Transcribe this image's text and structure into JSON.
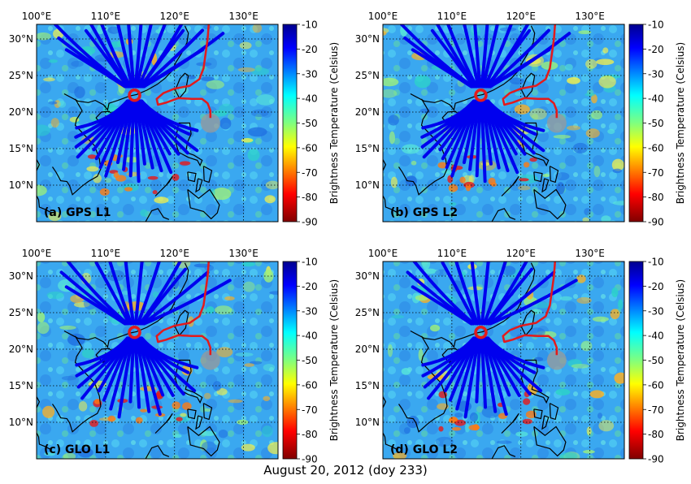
{
  "figure": {
    "date_caption": "August 20, 2012 (doy 233)",
    "colorbar": {
      "label": "Brightness Temperature (Celsius)",
      "ticks": [
        "-10",
        "-20",
        "-30",
        "-40",
        "-50",
        "-60",
        "-70",
        "-80",
        "-90"
      ],
      "range": [
        -90,
        -10
      ]
    },
    "lon_ticks": [
      "100°E",
      "110°E",
      "120°E",
      "130°E"
    ],
    "lat_ticks": [
      "30°N",
      "25°N",
      "20°N",
      "15°N",
      "10°N"
    ],
    "map_extent": {
      "lon": [
        100,
        135
      ],
      "lat": [
        5,
        32
      ]
    },
    "station": {
      "lon": 114.2,
      "lat": 22.3
    },
    "colors": {
      "tracks": "#0000ee",
      "typhoon_track": "#e31a1c",
      "station": "#e31a1c",
      "coast": "#000000"
    },
    "panels": [
      {
        "label": "(a) GPS L1"
      },
      {
        "label": "(b) GPS L2"
      },
      {
        "label": "(c) GLO L1"
      },
      {
        "label": "(d) GLO L2"
      }
    ]
  }
}
